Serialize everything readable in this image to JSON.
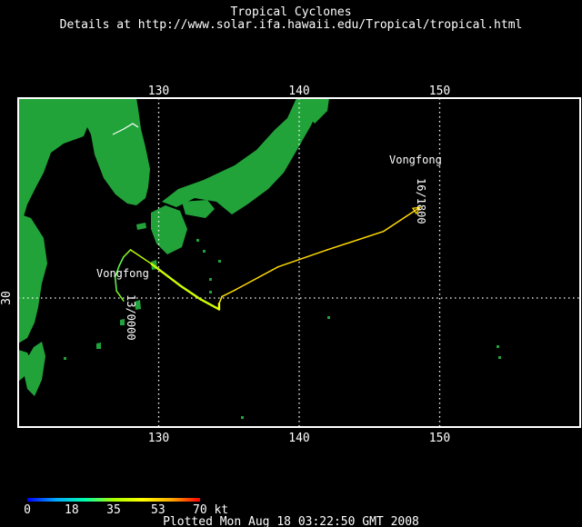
{
  "header": {
    "title": "Tropical Cyclones",
    "details": "Details at http://www.solar.ifa.hawaii.edu/Tropical/tropical.html"
  },
  "map": {
    "lon_range": [
      120,
      160
    ],
    "lat_range": [
      20.9,
      44.1
    ],
    "lon_ticks": [
      {
        "value": 130,
        "label": "130"
      },
      {
        "value": 140,
        "label": "140"
      },
      {
        "value": 150,
        "label": "150"
      }
    ],
    "lat_ticks": [
      {
        "value": 30,
        "label": "30"
      }
    ],
    "colors": {
      "land": "#22a33a",
      "ocean": "#000000",
      "frame": "#ffffff",
      "grid": "#ffffff",
      "border": "#ffffff"
    }
  },
  "storm": {
    "name_start": "Vongfong",
    "name_end": "Vongfong",
    "start_label": "13/0000",
    "end_label": "16/1800",
    "track": [
      {
        "lon": 127.5,
        "lat": 29.8,
        "kt": 35
      },
      {
        "lon": 127.0,
        "lat": 30.5,
        "kt": 30
      },
      {
        "lon": 126.9,
        "lat": 31.5,
        "kt": 30
      },
      {
        "lon": 127.2,
        "lat": 32.3,
        "kt": 30
      },
      {
        "lon": 127.5,
        "lat": 32.9,
        "kt": 30
      },
      {
        "lon": 128.0,
        "lat": 33.4,
        "kt": 35
      },
      {
        "lon": 129.5,
        "lat": 32.4,
        "kt": 40
      },
      {
        "lon": 131.5,
        "lat": 30.9,
        "kt": 40
      },
      {
        "lon": 133.0,
        "lat": 29.9,
        "kt": 40
      },
      {
        "lon": 134.3,
        "lat": 29.2,
        "kt": 40
      },
      {
        "lon": 134.3,
        "lat": 29.6,
        "kt": 48
      },
      {
        "lon": 134.5,
        "lat": 30.1,
        "kt": 50
      },
      {
        "lon": 135.5,
        "lat": 30.6,
        "kt": 52
      },
      {
        "lon": 138.5,
        "lat": 32.2,
        "kt": 52
      },
      {
        "lon": 142.0,
        "lat": 33.4,
        "kt": 52
      },
      {
        "lon": 146.0,
        "lat": 34.7,
        "kt": 52
      },
      {
        "lon": 148.6,
        "lat": 36.4,
        "kt": 52
      }
    ]
  },
  "legend": {
    "ticks": [
      {
        "value": 0,
        "label": "0"
      },
      {
        "value": 18,
        "label": "18"
      },
      {
        "value": 35,
        "label": "35"
      },
      {
        "value": 53,
        "label": "53"
      },
      {
        "value": 70,
        "label": "70 kt"
      }
    ],
    "max": 70,
    "stops": [
      "#0000ff",
      "#00aaff",
      "#00ffaa",
      "#aaff00",
      "#ffff00",
      "#ffaa00",
      "#ff0000"
    ]
  },
  "footer": {
    "plotted": "Plotted Mon Aug 18 03:22:50 GMT 2008"
  }
}
